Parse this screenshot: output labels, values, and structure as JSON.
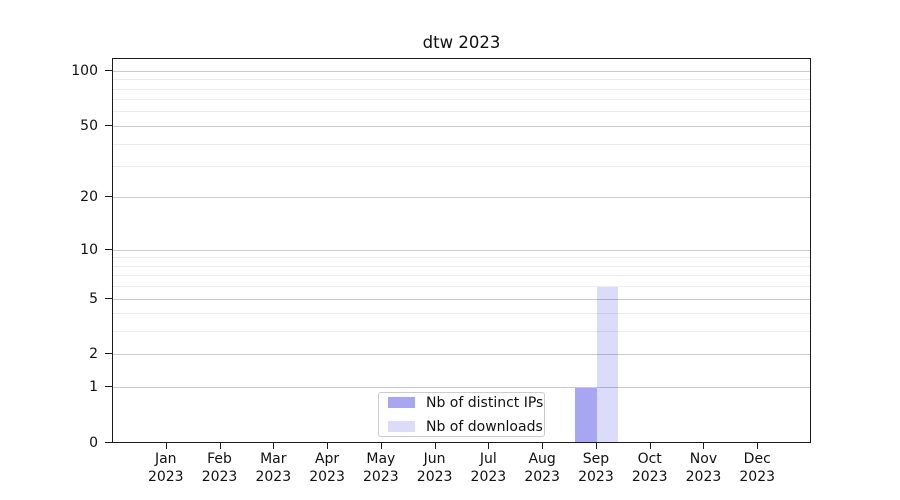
{
  "chart_data": {
    "type": "bar",
    "title": "dtw 2023",
    "categories": [
      "Jan",
      "Feb",
      "Mar",
      "Apr",
      "May",
      "Jun",
      "Jul",
      "Aug",
      "Sep",
      "Oct",
      "Nov",
      "Dec"
    ],
    "year_label": "2023",
    "series": [
      {
        "name": "Nb of distinct IPs",
        "color": "rgba(0,0,221,0.35)",
        "values": [
          0,
          0,
          0,
          0,
          0,
          0,
          0,
          0,
          1,
          0,
          0,
          0
        ]
      },
      {
        "name": "Nb of downloads",
        "color": "rgba(0,0,221,0.14)",
        "values": [
          0,
          0,
          0,
          0,
          0,
          0,
          0,
          0,
          6,
          0,
          0,
          0
        ]
      }
    ],
    "yscale": "log1p",
    "ylim": [
      0,
      117.4
    ],
    "yticks": [
      0,
      1,
      2,
      5,
      10,
      20,
      50,
      100
    ],
    "yticks_minor": [
      3,
      4,
      6,
      7,
      8,
      9,
      30,
      40,
      60,
      70,
      80,
      90
    ],
    "grid": "horizontal",
    "grid_color_major": "#cbcbcb",
    "grid_color_minor": "#ececec",
    "axis_color": "#1b1b1b",
    "legend_position": "lower center"
  }
}
